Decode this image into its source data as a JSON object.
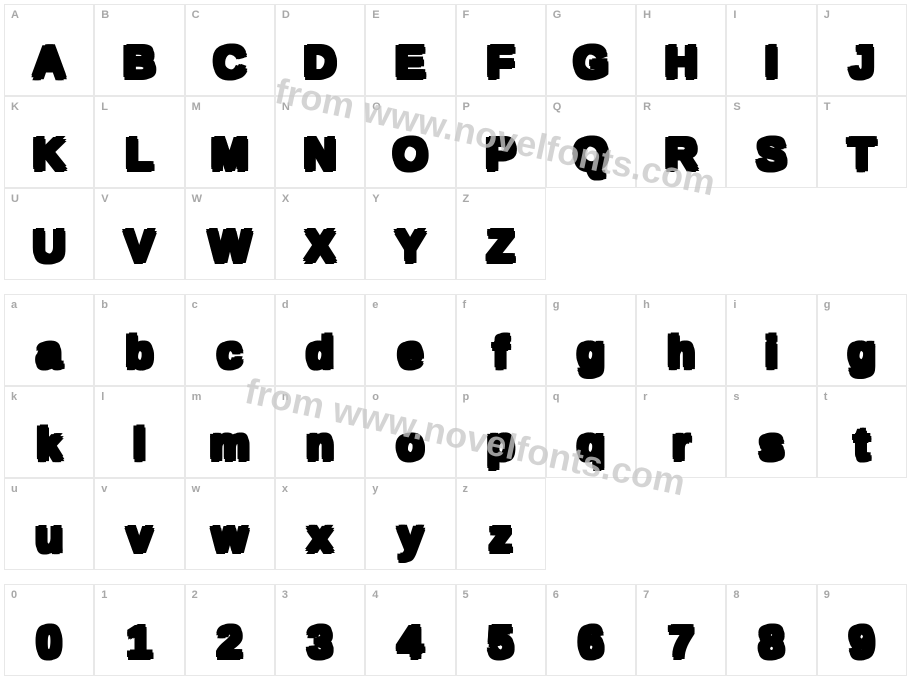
{
  "watermark": "from www.novelfonts.com",
  "groups": [
    {
      "rows": [
        [
          {
            "label": "A",
            "glyph": "A"
          },
          {
            "label": "B",
            "glyph": "B"
          },
          {
            "label": "C",
            "glyph": "C"
          },
          {
            "label": "D",
            "glyph": "D"
          },
          {
            "label": "E",
            "glyph": "E"
          },
          {
            "label": "F",
            "glyph": "F"
          },
          {
            "label": "G",
            "glyph": "G"
          },
          {
            "label": "H",
            "glyph": "H"
          },
          {
            "label": "I",
            "glyph": "I"
          },
          {
            "label": "J",
            "glyph": "J"
          }
        ],
        [
          {
            "label": "K",
            "glyph": "K"
          },
          {
            "label": "L",
            "glyph": "L"
          },
          {
            "label": "M",
            "glyph": "M"
          },
          {
            "label": "N",
            "glyph": "N"
          },
          {
            "label": "O",
            "glyph": "O"
          },
          {
            "label": "P",
            "glyph": "P"
          },
          {
            "label": "Q",
            "glyph": "Q"
          },
          {
            "label": "R",
            "glyph": "R"
          },
          {
            "label": "S",
            "glyph": "S"
          },
          {
            "label": "T",
            "glyph": "T"
          }
        ],
        [
          {
            "label": "U",
            "glyph": "U"
          },
          {
            "label": "V",
            "glyph": "V"
          },
          {
            "label": "W",
            "glyph": "W"
          },
          {
            "label": "X",
            "glyph": "X"
          },
          {
            "label": "Y",
            "glyph": "Y"
          },
          {
            "label": "Z",
            "glyph": "Z"
          },
          null,
          null,
          null,
          null
        ]
      ]
    },
    {
      "rows": [
        [
          {
            "label": "a",
            "glyph": "a"
          },
          {
            "label": "b",
            "glyph": "b"
          },
          {
            "label": "c",
            "glyph": "c"
          },
          {
            "label": "d",
            "glyph": "d"
          },
          {
            "label": "e",
            "glyph": "e"
          },
          {
            "label": "f",
            "glyph": "f"
          },
          {
            "label": "g",
            "glyph": "g"
          },
          {
            "label": "h",
            "glyph": "h"
          },
          {
            "label": "i",
            "glyph": "i"
          },
          {
            "label": "g",
            "glyph": "g"
          }
        ],
        [
          {
            "label": "k",
            "glyph": "k"
          },
          {
            "label": "l",
            "glyph": "l"
          },
          {
            "label": "m",
            "glyph": "m"
          },
          {
            "label": "n",
            "glyph": "n"
          },
          {
            "label": "o",
            "glyph": "o"
          },
          {
            "label": "p",
            "glyph": "p"
          },
          {
            "label": "q",
            "glyph": "q"
          },
          {
            "label": "r",
            "glyph": "r"
          },
          {
            "label": "s",
            "glyph": "s"
          },
          {
            "label": "t",
            "glyph": "t"
          }
        ],
        [
          {
            "label": "u",
            "glyph": "u"
          },
          {
            "label": "v",
            "glyph": "v"
          },
          {
            "label": "w",
            "glyph": "w"
          },
          {
            "label": "x",
            "glyph": "x"
          },
          {
            "label": "y",
            "glyph": "y"
          },
          {
            "label": "z",
            "glyph": "z"
          },
          null,
          null,
          null,
          null
        ]
      ]
    },
    {
      "rows": [
        [
          {
            "label": "0",
            "glyph": "0"
          },
          {
            "label": "1",
            "glyph": "1"
          },
          {
            "label": "2",
            "glyph": "2"
          },
          {
            "label": "3",
            "glyph": "3"
          },
          {
            "label": "4",
            "glyph": "4"
          },
          {
            "label": "5",
            "glyph": "5"
          },
          {
            "label": "6",
            "glyph": "6"
          },
          {
            "label": "7",
            "glyph": "7"
          },
          {
            "label": "8",
            "glyph": "8"
          },
          {
            "label": "9",
            "glyph": "9"
          }
        ]
      ]
    }
  ]
}
